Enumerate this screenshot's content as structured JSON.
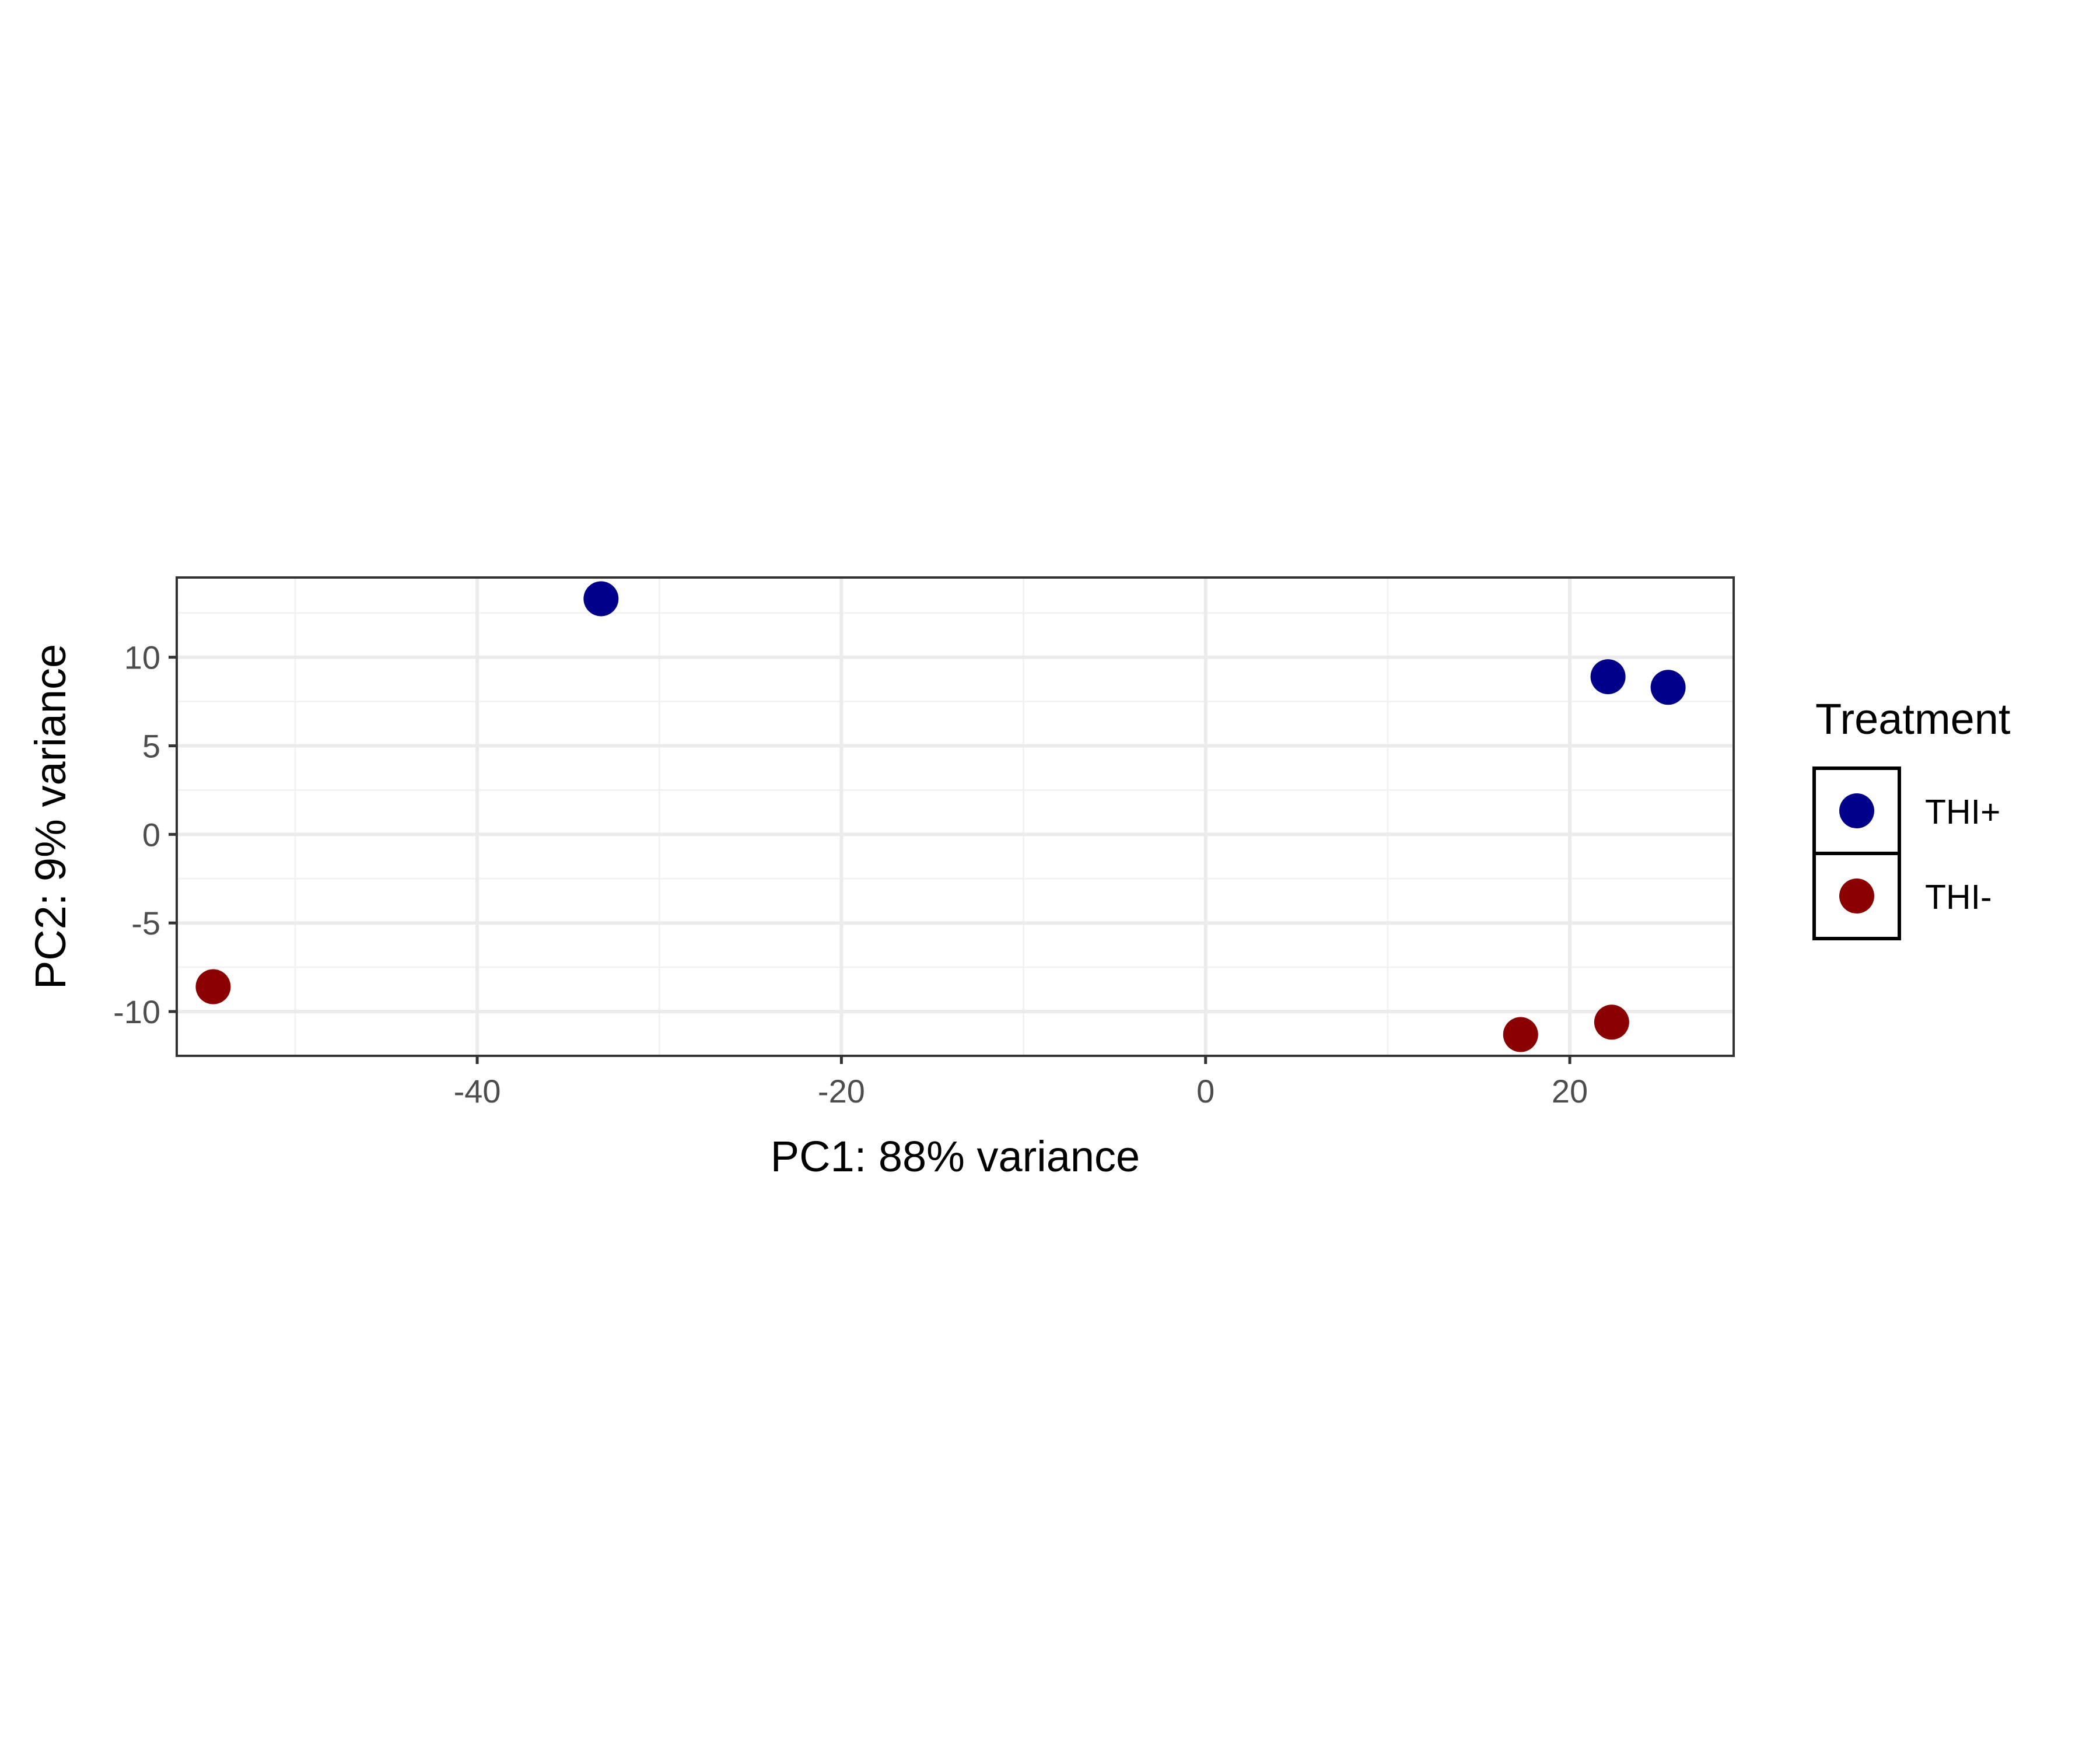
{
  "chart_data": {
    "type": "scatter",
    "xlabel": "PC1: 88% variance",
    "ylabel": "PC2: 9% variance",
    "xlim": [
      -56.5,
      29.0
    ],
    "ylim": [
      -12.5,
      14.5
    ],
    "x_ticks": [
      -40,
      -20,
      0,
      20
    ],
    "y_ticks": [
      -10,
      -5,
      0,
      5,
      10
    ],
    "x_tick_labels": [
      "-40",
      "-20",
      "0",
      "20"
    ],
    "y_tick_labels": [
      "-10",
      "-5",
      "0",
      "5",
      "10"
    ],
    "grid": true,
    "legend": {
      "title": "Treatment",
      "position": "right"
    },
    "series": [
      {
        "name": "THI+",
        "color": "#00008B",
        "points": [
          {
            "x": -33.2,
            "y": 13.3
          },
          {
            "x": 22.1,
            "y": 8.9
          },
          {
            "x": 25.4,
            "y": 8.3
          }
        ]
      },
      {
        "name": "THI-",
        "color": "#8B0000",
        "points": [
          {
            "x": -54.5,
            "y": -8.6
          },
          {
            "x": 17.3,
            "y": -11.3
          },
          {
            "x": 22.3,
            "y": -10.6
          }
        ]
      }
    ]
  }
}
